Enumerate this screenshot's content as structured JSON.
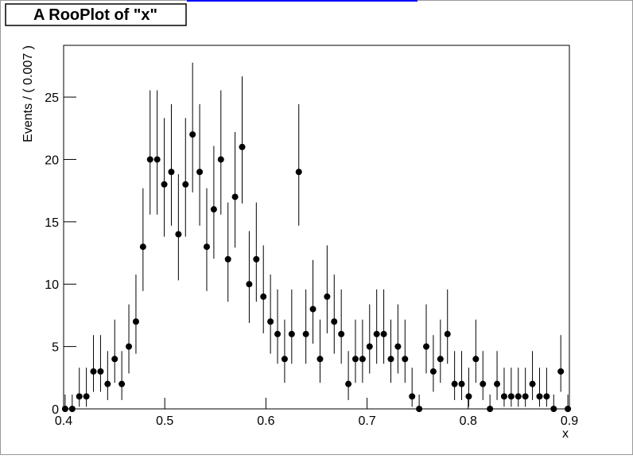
{
  "chart_data": {
    "type": "errorscatter",
    "title": "A RooPlot of \"x\"",
    "x_label": "x",
    "y_label": "Events / ( 0.007 )",
    "x": [
      0.4015,
      0.4085,
      0.4155,
      0.4225,
      0.4295,
      0.4365,
      0.4435,
      0.4505,
      0.4575,
      0.4645,
      0.4715,
      0.4785,
      0.4855,
      0.4925,
      0.4995,
      0.5065,
      0.5135,
      0.5205,
      0.5275,
      0.5345,
      0.5415,
      0.5485,
      0.5555,
      0.5625,
      0.5695,
      0.5765,
      0.5835,
      0.5905,
      0.5975,
      0.6045,
      0.6115,
      0.6185,
      0.6255,
      0.6325,
      0.6395,
      0.6465,
      0.6535,
      0.6605,
      0.6675,
      0.6745,
      0.6815,
      0.6885,
      0.6955,
      0.7025,
      0.7095,
      0.7165,
      0.7235,
      0.7305,
      0.7375,
      0.7445,
      0.7515,
      0.7585,
      0.7655,
      0.7725,
      0.7795,
      0.7865,
      0.7935,
      0.8005,
      0.8075,
      0.8145,
      0.8215,
      0.8285,
      0.8355,
      0.8425,
      0.8495,
      0.8565,
      0.8635,
      0.8705,
      0.8775,
      0.8845,
      0.8915,
      0.8985
    ],
    "series": [
      {
        "color": "#000000",
        "values": [
          0,
          0,
          1,
          1,
          3,
          3,
          2,
          4,
          2,
          5,
          7,
          13,
          20,
          20,
          18,
          19,
          14,
          18,
          22,
          19,
          13,
          16,
          20,
          12,
          17,
          21,
          10,
          12,
          9,
          7,
          6,
          4,
          6,
          19,
          6,
          8,
          4,
          9,
          7,
          6,
          2,
          4,
          4,
          5,
          6,
          6,
          4,
          5,
          4,
          1,
          0,
          5,
          3,
          4,
          6,
          2,
          2,
          1,
          4,
          2,
          0,
          2,
          1,
          1,
          1,
          1,
          2,
          1,
          1,
          0,
          3,
          0
        ],
        "err_low": [
          0,
          0,
          0.83,
          0.83,
          1.63,
          1.63,
          1.29,
          1.91,
          1.29,
          2.16,
          2.58,
          3.55,
          4.42,
          4.42,
          4.19,
          4.31,
          3.69,
          4.19,
          4.64,
          4.31,
          3.55,
          3.95,
          4.42,
          3.41,
          4.07,
          4.53,
          3.11,
          3.41,
          2.94,
          2.58,
          2.38,
          1.91,
          2.38,
          4.31,
          2.38,
          2.77,
          1.91,
          2.94,
          2.58,
          2.38,
          1.29,
          1.91,
          1.91,
          2.16,
          2.38,
          2.38,
          1.91,
          2.16,
          1.91,
          0.83,
          0,
          2.16,
          1.63,
          1.91,
          2.38,
          1.29,
          1.29,
          0.83,
          1.91,
          1.29,
          0,
          1.29,
          0.83,
          0.83,
          0.83,
          0.83,
          1.29,
          0.83,
          0.83,
          0,
          1.63,
          0
        ],
        "err_high": [
          1.15,
          1.15,
          2.3,
          2.3,
          2.92,
          2.92,
          2.64,
          3.16,
          2.64,
          3.38,
          3.77,
          4.69,
          5.55,
          5.55,
          5.32,
          5.44,
          4.82,
          5.32,
          5.76,
          5.44,
          4.69,
          5.08,
          5.55,
          4.55,
          5.2,
          5.66,
          4.26,
          4.55,
          4.11,
          3.77,
          3.58,
          3.16,
          3.58,
          5.44,
          3.58,
          3.94,
          3.16,
          4.11,
          3.77,
          3.58,
          2.64,
          3.16,
          3.16,
          3.38,
          3.58,
          3.58,
          3.16,
          3.38,
          3.16,
          2.3,
          1.15,
          3.38,
          2.92,
          3.16,
          3.58,
          2.64,
          2.64,
          2.3,
          3.16,
          2.64,
          1.15,
          2.64,
          2.3,
          2.3,
          2.3,
          2.3,
          2.64,
          2.3,
          2.3,
          1.15,
          2.92,
          1.15
        ]
      }
    ],
    "xlim": [
      0.4,
      0.9
    ],
    "xticks": [
      0.4,
      0.5,
      0.6,
      0.7,
      0.8,
      0.9
    ],
    "ylim": [
      0,
      29.15
    ],
    "yticks": [
      0,
      5,
      10,
      15,
      20,
      25
    ],
    "grid": false
  }
}
